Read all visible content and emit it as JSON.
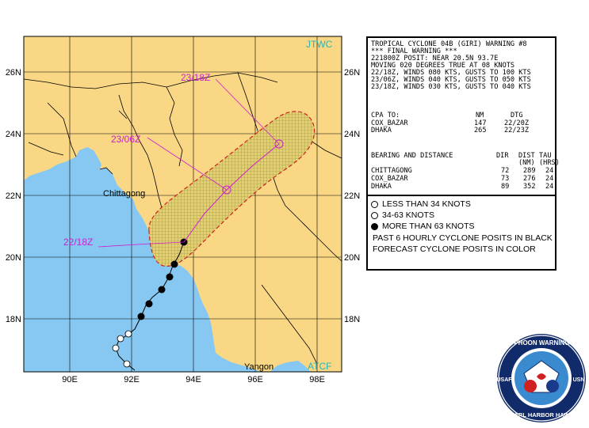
{
  "map": {
    "agency_tag": "JTWC",
    "source_tag": "ATCF",
    "lat_labels_left": [
      "26N",
      "24N",
      "22N",
      "20N",
      "18N"
    ],
    "lat_labels_right": [
      "26N",
      "24N",
      "22N",
      "20N",
      "18N"
    ],
    "lon_labels": [
      "90E",
      "92E",
      "94E",
      "96E",
      "98E"
    ],
    "place_labels": {
      "chittagong": "Chittagong",
      "yangon": "Yangon"
    },
    "forecast_labels": {
      "f1": "22/18Z",
      "f2": "23/06Z",
      "f3": "23/18Z"
    },
    "colors": {
      "land": "#f9d784",
      "water": "#86c8f2",
      "track": "#d01ed0",
      "danger": "#d02020",
      "label": "#d01ed0",
      "jtwc": "#2ab4b4"
    }
  },
  "warning": {
    "title": "TROPICAL CYCLONE 04B (GIRI) WARNING #8",
    "subtitle": "*** FINAL WARNING ***",
    "lines": [
      "221800Z POSIT: NEAR 20.5N 93.7E",
      "MOVING 020 DEGREES TRUE AT 08 KNOTS",
      "22/18Z, WINDS 080 KTS, GUSTS TO 100 KTS",
      "23/06Z, WINDS 040 KTS, GUSTS TO 050 KTS",
      "23/18Z, WINDS 030 KTS, GUSTS TO 040 KTS"
    ],
    "cpa": {
      "header": [
        "CPA TO:",
        "NM",
        "DTG"
      ],
      "rows": [
        [
          "COX_BAZAR",
          "147",
          "22/20Z"
        ],
        [
          "DHAKA",
          "265",
          "22/23Z"
        ]
      ]
    },
    "bearing": {
      "header": [
        "BEARING AND DISTANCE",
        "DIR",
        "DIST",
        "TAU"
      ],
      "subheader": [
        "",
        "",
        "(NM)",
        "(HRS)"
      ],
      "rows": [
        [
          "CHITTAGONG",
          "72",
          "289",
          "24"
        ],
        [
          "COX_BAZAR",
          "73",
          "276",
          "24"
        ],
        [
          "DHAKA",
          "89",
          "352",
          "24"
        ]
      ]
    }
  },
  "legend": {
    "items": [
      "LESS THAN 34 KNOTS",
      "34-63 KNOTS",
      "MORE THAN 63 KNOTS",
      "PAST 6 HOURLY CYCLONE POSITS IN BLACK",
      "FORECAST CYCLONE POSITS IN COLOR"
    ]
  },
  "seal": {
    "outer_text": "JOINT TYPHOON WARNING CENTER",
    "bottom_text": "PEARL HARBOR HAWAII",
    "left_text": "USAF",
    "right_text": "USN",
    "colors": {
      "ring": "#102a6a",
      "inner": "#ffffff",
      "globe": "#3a8ad0"
    }
  }
}
